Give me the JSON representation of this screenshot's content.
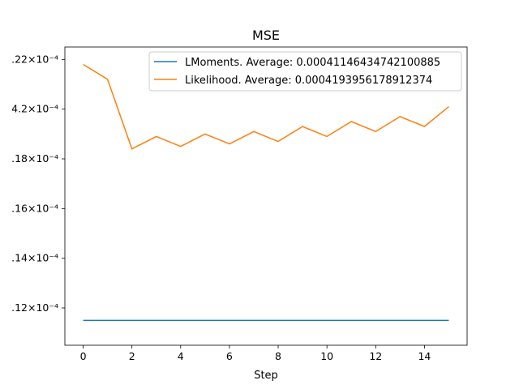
{
  "chart_data": {
    "type": "line",
    "title": "MSE",
    "xlabel": "Step",
    "ylabel": "",
    "xlim": [
      -0.75,
      15.75
    ],
    "ylim": [
      0.0004105,
      0.0004225
    ],
    "xticks": [
      0,
      2,
      4,
      6,
      8,
      10,
      12,
      14
    ],
    "xtick_labels": [
      "0",
      "2",
      "4",
      "6",
      "8",
      "10",
      "12",
      "14"
    ],
    "yticks": [
      0.000412,
      0.000414,
      0.000416,
      0.000418,
      0.00042,
      0.000422
    ],
    "ytick_labels": [
      ".12×10⁻⁴",
      ".14×10⁻⁴",
      ".16×10⁻⁴",
      ".18×10⁻⁴",
      "4.2×10⁻⁴",
      ".22×10⁻⁴"
    ],
    "legend_position": "top-right",
    "series": [
      {
        "name": "LMoments. Average: 0.00041146434742100885",
        "color": "#1f77b4",
        "x": [
          0,
          1,
          2,
          3,
          4,
          5,
          6,
          7,
          8,
          9,
          10,
          11,
          12,
          13,
          14,
          15
        ],
        "values": [
          0.0004115,
          0.0004115,
          0.0004115,
          0.0004115,
          0.0004115,
          0.0004115,
          0.0004115,
          0.0004115,
          0.0004115,
          0.0004115,
          0.0004115,
          0.0004115,
          0.0004115,
          0.0004115,
          0.0004115,
          0.0004115
        ]
      },
      {
        "name": "Likelihood. Average: 0.0004193956178912374",
        "color": "#ff7f0e",
        "x": [
          0,
          1,
          2,
          3,
          4,
          5,
          6,
          7,
          8,
          9,
          10,
          11,
          12,
          13,
          14,
          15
        ],
        "values": [
          0.0004218,
          0.0004212,
          0.0004184,
          0.0004189,
          0.0004185,
          0.000419,
          0.0004186,
          0.0004191,
          0.0004187,
          0.0004193,
          0.0004189,
          0.0004195,
          0.0004191,
          0.0004197,
          0.0004193,
          0.0004201
        ]
      }
    ]
  }
}
